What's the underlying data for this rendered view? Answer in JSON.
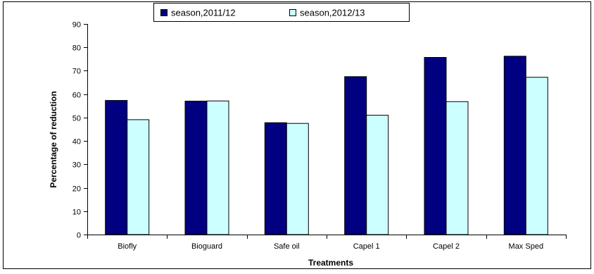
{
  "chart_data": {
    "type": "bar",
    "title": "",
    "xlabel": "Treatments",
    "ylabel": "Percentage of reduction",
    "categories": [
      "Biofly",
      "Bioguard",
      "Safe oil",
      "Capel 1",
      "Capel 2",
      "Max Sped"
    ],
    "series": [
      {
        "name": "season,2011/12",
        "color": "#000080",
        "values": [
          57.3,
          57.0,
          47.8,
          67.5,
          75.7,
          76.2
        ]
      },
      {
        "name": "season,2012/13",
        "color": "#ccffff",
        "values": [
          49.1,
          57.1,
          47.5,
          51.0,
          56.8,
          67.2
        ]
      }
    ],
    "ylim": [
      0,
      90
    ],
    "yticks": [
      0,
      10,
      20,
      30,
      40,
      50,
      60,
      70,
      80,
      90
    ],
    "grid": false,
    "legend_position": "top-center"
  }
}
